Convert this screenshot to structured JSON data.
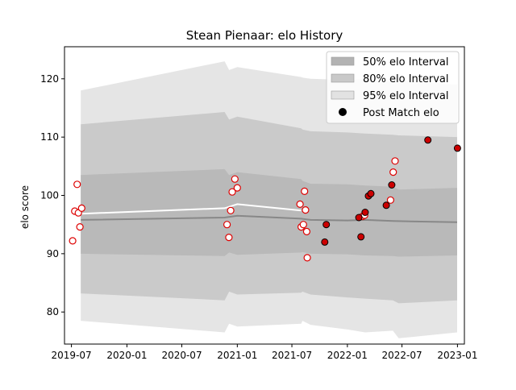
{
  "chart_data": {
    "type": "scatter",
    "title": "Stean Pienaar: elo History",
    "xlabel": "",
    "ylabel": "elo score",
    "x_range": [
      "2019-06-08",
      "2023-01-24"
    ],
    "ylim": [
      74.5,
      125.5
    ],
    "x_ticks": [
      {
        "date": "2019-07-01",
        "label": "2019-07"
      },
      {
        "date": "2020-01-01",
        "label": "2020-01"
      },
      {
        "date": "2020-07-01",
        "label": "2020-07"
      },
      {
        "date": "2021-01-01",
        "label": "2021-01"
      },
      {
        "date": "2021-07-01",
        "label": "2021-07"
      },
      {
        "date": "2022-01-01",
        "label": "2022-01"
      },
      {
        "date": "2022-07-01",
        "label": "2022-07"
      },
      {
        "date": "2023-01-01",
        "label": "2023-01"
      }
    ],
    "y_ticks": [
      80,
      90,
      100,
      110,
      120
    ],
    "grid": false,
    "legend": {
      "position": "top-right",
      "entries": [
        {
          "label": "50% elo Interval",
          "color": "#b3b3b3"
        },
        {
          "label": "80% elo Interval",
          "color": "#c9c9c9"
        },
        {
          "label": "95% elo Interval",
          "color": "#e2e2e2"
        },
        {
          "label": "Post Match elo",
          "color": "#000000"
        }
      ]
    },
    "intervals": [
      {
        "name": "95% elo Interval",
        "color": "#e5e5e5",
        "x": [
          "2019-08-01",
          "2020-11-20",
          "2020-12-05",
          "2021-01-01",
          "2021-08-01",
          "2021-08-05",
          "2021-09-01",
          "2022-01-01",
          "2022-03-01",
          "2022-06-01",
          "2022-06-20",
          "2022-12-31"
        ],
        "upper": [
          118.0,
          123.0,
          121.5,
          122.0,
          120.3,
          120.2,
          120.0,
          119.8,
          119.9,
          119.5,
          119.7,
          119.0
        ],
        "lower": [
          78.5,
          76.5,
          78.0,
          77.5,
          78.0,
          78.5,
          77.8,
          77.0,
          76.5,
          76.8,
          75.5,
          76.5
        ]
      },
      {
        "name": "80% elo Interval",
        "color": "#cacaca",
        "x": [
          "2019-08-01",
          "2020-11-20",
          "2020-12-05",
          "2021-01-01",
          "2021-08-01",
          "2021-08-05",
          "2021-09-01",
          "2022-01-01",
          "2022-03-01",
          "2022-06-01",
          "2022-06-20",
          "2022-12-31"
        ],
        "upper": [
          112.2,
          114.3,
          113.0,
          113.5,
          111.5,
          111.3,
          111.0,
          110.8,
          110.6,
          110.4,
          110.3,
          110.0
        ],
        "lower": [
          83.2,
          82.0,
          83.5,
          83.0,
          83.3,
          83.5,
          83.0,
          82.5,
          82.3,
          82.0,
          81.5,
          82.0
        ]
      },
      {
        "name": "50% elo Interval",
        "color": "#b9b9b9",
        "x": [
          "2019-08-01",
          "2020-11-20",
          "2020-12-05",
          "2021-01-01",
          "2021-08-01",
          "2021-08-05",
          "2021-09-01",
          "2022-01-01",
          "2022-03-01",
          "2022-06-01",
          "2022-06-20",
          "2022-12-31"
        ],
        "upper": [
          103.5,
          104.5,
          103.5,
          104.0,
          102.8,
          102.5,
          102.0,
          101.9,
          101.7,
          101.5,
          101.0,
          101.3
        ],
        "lower": [
          90.0,
          89.6,
          90.2,
          89.8,
          90.2,
          90.3,
          90.0,
          89.9,
          89.7,
          89.6,
          89.5,
          89.7
        ]
      }
    ],
    "series": [
      {
        "color": "#888888",
        "x": [
          "2019-08-01",
          "2020-11-20",
          "2021-01-01",
          "2021-08-01",
          "2021-09-01",
          "2022-01-01",
          "2022-03-01",
          "2022-06-01",
          "2022-12-31"
        ],
        "y": [
          95.8,
          96.2,
          96.5,
          96.0,
          95.8,
          95.7,
          95.8,
          95.6,
          95.4
        ]
      },
      {
        "color": "#ffffff",
        "x": [
          "2019-07-01",
          "2020-11-20",
          "2021-01-01",
          "2021-08-01"
        ],
        "y": [
          96.8,
          97.8,
          98.5,
          97.4
        ]
      }
    ],
    "points_open": {
      "fill": "#ffffff",
      "edge": "#dd0000",
      "points": [
        {
          "x": "2019-07-05",
          "y": 92.2
        },
        {
          "x": "2019-07-12",
          "y": 97.3
        },
        {
          "x": "2019-07-20",
          "y": 101.9
        },
        {
          "x": "2019-07-24",
          "y": 97.0
        },
        {
          "x": "2019-07-29",
          "y": 94.6
        },
        {
          "x": "2019-08-04",
          "y": 97.8
        },
        {
          "x": "2020-11-28",
          "y": 95.0
        },
        {
          "x": "2020-12-04",
          "y": 92.8
        },
        {
          "x": "2020-12-10",
          "y": 97.4
        },
        {
          "x": "2020-12-15",
          "y": 100.6
        },
        {
          "x": "2020-12-24",
          "y": 102.8
        },
        {
          "x": "2021-01-01",
          "y": 101.3
        },
        {
          "x": "2021-07-28",
          "y": 98.5
        },
        {
          "x": "2021-08-01",
          "y": 94.6
        },
        {
          "x": "2021-08-08",
          "y": 95.0
        },
        {
          "x": "2021-08-12",
          "y": 100.7
        },
        {
          "x": "2021-08-15",
          "y": 97.5
        },
        {
          "x": "2021-08-19",
          "y": 93.8
        },
        {
          "x": "2021-08-21",
          "y": 89.3
        },
        {
          "x": "2022-02-20",
          "y": 96.4
        },
        {
          "x": "2022-02-27",
          "y": 96.6
        },
        {
          "x": "2022-05-24",
          "y": 99.2
        },
        {
          "x": "2022-06-02",
          "y": 104.0
        },
        {
          "x": "2022-06-08",
          "y": 105.9
        }
      ]
    },
    "points_filled": {
      "fill": "#cc0000",
      "edge": "#000000",
      "points": [
        {
          "x": "2021-10-18",
          "y": 92.0
        },
        {
          "x": "2021-10-23",
          "y": 95.0
        },
        {
          "x": "2022-02-08",
          "y": 96.2
        },
        {
          "x": "2022-02-15",
          "y": 92.9
        },
        {
          "x": "2022-03-01",
          "y": 97.1
        },
        {
          "x": "2022-03-12",
          "y": 99.9
        },
        {
          "x": "2022-03-20",
          "y": 100.3
        },
        {
          "x": "2022-05-10",
          "y": 98.3
        },
        {
          "x": "2022-05-28",
          "y": 101.8
        },
        {
          "x": "2022-09-25",
          "y": 109.5
        },
        {
          "x": "2023-01-01",
          "y": 108.1
        }
      ]
    }
  }
}
